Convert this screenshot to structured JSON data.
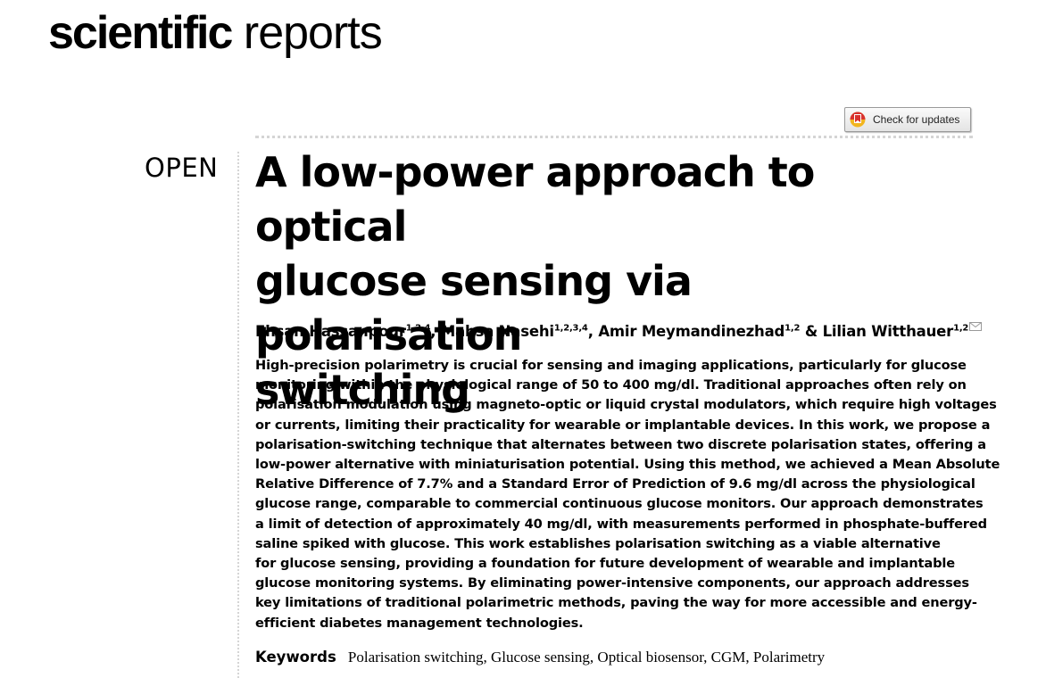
{
  "journal": {
    "name_bold": "scientific",
    "name_light": "reports"
  },
  "check_for_updates": {
    "label": "Check for updates"
  },
  "access_label": "OPEN",
  "title_lines": [
    "A low-power approach to optical",
    "glucose sensing via polarisation",
    "switching"
  ],
  "authors": [
    {
      "name": "Ehsan Hassanpour",
      "affiliations": "1,2,4"
    },
    {
      "name": "Mahsa Nasehi",
      "affiliations": "1,2,3,4"
    },
    {
      "name": "Amir Meymandinezhad",
      "affiliations": "1,2"
    },
    {
      "name": "Lilian Witthauer",
      "affiliations": "1,2"
    }
  ],
  "author_separators": [
    ", ",
    ", ",
    " & "
  ],
  "abstract_lines": [
    "High-precision polarimetry is crucial for sensing and imaging applications, particularly for glucose",
    "monitoring within the physiological range of 50 to 400 mg/dl. Traditional approaches often rely on",
    "polarisation modulation using magneto-optic or liquid crystal modulators, which require high voltages",
    "or currents, limiting their practicality for wearable or implantable devices. In this work, we propose a",
    "polarisation-switching technique that alternates between two discrete polarisation states, offering a",
    "low-power alternative with miniaturisation potential. Using this method, we achieved a Mean Absolute",
    "Relative Difference of 7.7% and a Standard Error of Prediction of 9.6 mg/dl across the physiological",
    "glucose range, comparable to commercial continuous glucose monitors. Our approach demonstrates",
    "a limit of detection of approximately 40 mg/dl, with measurements performed in phosphate-buffered",
    "saline spiked with glucose. This work establishes polarisation switching as a viable alternative",
    "for glucose sensing, providing a foundation for future development of wearable and implantable",
    "glucose monitoring systems. By eliminating power-intensive components, our approach addresses",
    "key limitations of traditional polarimetric methods, paving the way for more accessible and energy-",
    "efficient diabetes management technologies."
  ],
  "keywords": {
    "label": "Keywords",
    "list": "Polarisation switching, Glucose sensing, Optical biosensor, CGM, Polarimetry"
  },
  "colors": {
    "text": "#000000",
    "rule": "#d5d5d5",
    "badge_red": "#d8322e",
    "badge_yellow": "#f2b51f"
  },
  "icons": {
    "update_badge": "crossmark-icon",
    "corresponding_author": "envelope-icon"
  }
}
